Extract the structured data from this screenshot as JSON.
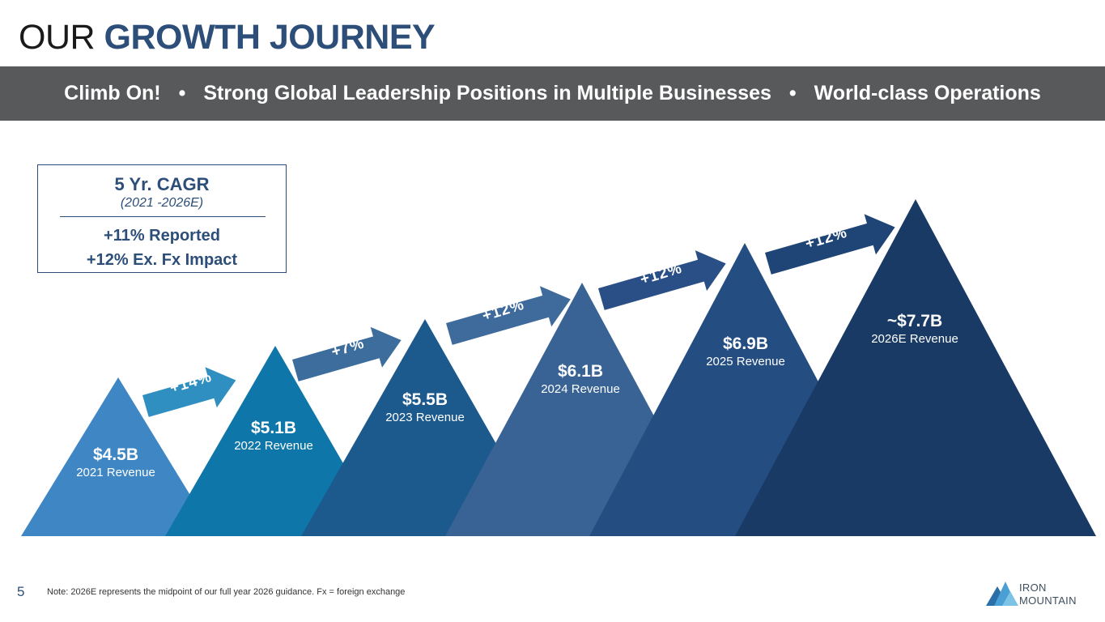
{
  "title": {
    "part1": "OUR",
    "part2": "GROWTH JOURNEY"
  },
  "banner": {
    "items": [
      "Climb On!",
      "Strong Global Leadership Positions in Multiple Businesses",
      "World-class Operations"
    ],
    "separator": "•"
  },
  "cagr_box": {
    "title": "5 Yr. CAGR",
    "subtitle": "(2021 -2026E)",
    "line1": "+11% Reported",
    "line2": "+12% Ex. Fx Impact"
  },
  "mountains": [
    {
      "value": "$4.5B",
      "label": "2021 Revenue",
      "color": "#3f87c4"
    },
    {
      "value": "$5.1B",
      "label": "2022 Revenue",
      "color": "#0e76a8"
    },
    {
      "value": "$5.5B",
      "label": "2023 Revenue",
      "color": "#1c5a8e"
    },
    {
      "value": "$6.1B",
      "label": "2024 Revenue",
      "color": "#386394"
    },
    {
      "value": "$6.9B",
      "label": "2025 Revenue",
      "color": "#244d82"
    },
    {
      "value": "~$7.7B",
      "label": "2026E Revenue",
      "color": "#183a64"
    }
  ],
  "growth_arrows": [
    {
      "label": "+14%",
      "color": "#2e8fc0"
    },
    {
      "label": "+7%",
      "color": "#3d6d9c"
    },
    {
      "label": "+12%",
      "color": "#3f6a9c"
    },
    {
      "label": "+12%",
      "color": "#2a4f86"
    },
    {
      "label": "+12%",
      "color": "#1f4577"
    }
  ],
  "footer": {
    "page_number": "5",
    "note": "Note: 2026E represents the midpoint of our full year 2026 guidance.  Fx = foreign exchange"
  },
  "logo": {
    "line1": "IRON",
    "line2": "MOUNTAIN"
  }
}
